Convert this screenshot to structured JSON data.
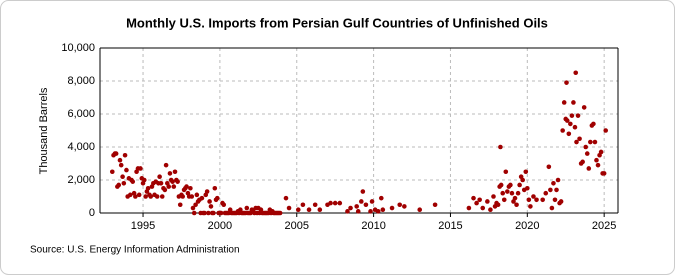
{
  "chart_data": {
    "type": "scatter",
    "title": "Monthly U.S. Imports from Persian Gulf Countries of Unfinished Oils",
    "y_label": "Thousand Barrels",
    "source": "Source: U.S. Energy Information Administration",
    "color": "#a00000",
    "grid": true,
    "xlim": [
      1992.2,
      2025.9
    ],
    "xticks": [
      1995,
      2000,
      2005,
      2010,
      2015,
      2020,
      2025
    ],
    "ylim": [
      0,
      10000
    ],
    "yticks": [
      0,
      {
        "value": 2000,
        "label": "2,000"
      },
      {
        "value": 4000,
        "label": "4,000"
      },
      {
        "value": 6000,
        "label": "6,000"
      },
      {
        "value": 8000,
        "label": "8,000"
      },
      {
        "value": 10000,
        "label": "10,000"
      }
    ],
    "x": [
      1993.0,
      1993.08,
      1993.17,
      1993.25,
      1993.33,
      1993.42,
      1993.5,
      1993.58,
      1993.67,
      1993.75,
      1993.83,
      1993.92,
      1994.0,
      1994.08,
      1994.17,
      1994.25,
      1994.33,
      1994.42,
      1994.5,
      1994.58,
      1994.67,
      1994.75,
      1994.83,
      1994.92,
      1995.0,
      1995.08,
      1995.17,
      1995.25,
      1995.33,
      1995.42,
      1995.5,
      1995.58,
      1995.67,
      1995.75,
      1995.83,
      1995.92,
      1996.0,
      1996.08,
      1996.17,
      1996.25,
      1996.33,
      1996.42,
      1996.5,
      1996.58,
      1996.67,
      1996.75,
      1996.83,
      1996.92,
      1997.0,
      1997.08,
      1997.17,
      1997.25,
      1997.33,
      1997.42,
      1997.5,
      1997.58,
      1997.67,
      1997.75,
      1997.83,
      1997.92,
      1998.0,
      1998.08,
      1998.17,
      1998.25,
      1998.33,
      1998.42,
      1998.5,
      1998.58,
      1998.67,
      1998.75,
      1998.83,
      1998.92,
      1999.0,
      1999.08,
      1999.17,
      1999.25,
      1999.33,
      1999.42,
      1999.5,
      1999.58,
      1999.67,
      1999.75,
      1999.83,
      1999.92,
      2000.0,
      2000.08,
      2000.17,
      2000.25,
      2000.33,
      2000.42,
      2000.5,
      2000.58,
      2000.67,
      2000.75,
      2000.83,
      2000.92,
      2001.0,
      2001.08,
      2001.17,
      2001.25,
      2001.33,
      2001.42,
      2001.5,
      2001.58,
      2001.67,
      2001.75,
      2001.83,
      2001.92,
      2002.0,
      2002.08,
      2002.17,
      2002.25,
      2002.33,
      2002.42,
      2002.5,
      2002.58,
      2002.67,
      2002.75,
      2002.83,
      2002.92,
      2003.0,
      2003.08,
      2003.17,
      2003.25,
      2003.33,
      2003.42,
      2003.5,
      2003.58,
      2003.67,
      2003.75,
      2003.83,
      2003.92,
      2004.3,
      2004.5,
      2005.1,
      2005.4,
      2005.8,
      2006.2,
      2006.5,
      2007.0,
      2007.2,
      2007.5,
      2007.8,
      2008.3,
      2008.5,
      2008.9,
      2009.0,
      2009.2,
      2009.3,
      2009.5,
      2009.8,
      2009.9,
      2010.1,
      2010.3,
      2010.5,
      2010.6,
      2011.2,
      2011.7,
      2012.0,
      2013.0,
      2014.0,
      2016.2,
      2016.5,
      2016.7,
      2016.9,
      2017.1,
      2017.4,
      2017.6,
      2017.8,
      2017.9,
      2018.0,
      2018.1,
      2018.2,
      2018.25,
      2018.3,
      2018.4,
      2018.5,
      2018.6,
      2018.7,
      2018.8,
      2018.9,
      2019.0,
      2019.1,
      2019.2,
      2019.3,
      2019.4,
      2019.5,
      2019.6,
      2019.7,
      2019.8,
      2019.9,
      2020.0,
      2020.1,
      2020.2,
      2020.4,
      2020.6,
      2021.0,
      2021.2,
      2021.4,
      2021.5,
      2021.6,
      2021.7,
      2021.8,
      2021.9,
      2022.0,
      2022.1,
      2022.2,
      2022.3,
      2022.4,
      2022.5,
      2022.55,
      2022.6,
      2022.7,
      2022.8,
      2022.9,
      2023.0,
      2023.1,
      2023.15,
      2023.2,
      2023.3,
      2023.4,
      2023.5,
      2023.6,
      2023.7,
      2023.8,
      2023.9,
      2024.0,
      2024.1,
      2024.2,
      2024.3,
      2024.4,
      2024.5,
      2024.6,
      2024.7,
      2024.8,
      2024.9,
      2025.0,
      2025.1
    ],
    "values": [
      2500,
      3500,
      3600,
      3600,
      1600,
      1700,
      3200,
      2900,
      2200,
      1800,
      3500,
      2600,
      1000,
      2100,
      1100,
      2000,
      1900,
      1200,
      1000,
      2500,
      2700,
      1100,
      2700,
      2100,
      1800,
      2000,
      1000,
      1300,
      1500,
      1100,
      1000,
      1600,
      1800,
      1100,
      1900,
      1000,
      1800,
      2200,
      1800,
      1000,
      1500,
      1400,
      2900,
      1800,
      1600,
      2400,
      2000,
      1900,
      1600,
      2500,
      2000,
      1900,
      1000,
      500,
      1100,
      1000,
      1400,
      1500,
      1600,
      1200,
      1000,
      1500,
      1000,
      300,
      0,
      500,
      1100,
      700,
      800,
      0,
      900,
      0,
      0,
      1100,
      1300,
      0,
      700,
      400,
      0,
      0,
      1500,
      800,
      900,
      0,
      0,
      0,
      600,
      500,
      0,
      0,
      0,
      0,
      200,
      0,
      0,
      0,
      0,
      0,
      100,
      0,
      200,
      0,
      0,
      0,
      0,
      300,
      0,
      0,
      0,
      200,
      100,
      0,
      300,
      0,
      300,
      0,
      200,
      0,
      0,
      0,
      0,
      0,
      0,
      200,
      0,
      100,
      0,
      0,
      0,
      0,
      0,
      0,
      900,
      300,
      200,
      500,
      200,
      500,
      200,
      500,
      600,
      600,
      600,
      100,
      300,
      400,
      100,
      700,
      1300,
      500,
      100,
      700,
      200,
      100,
      900,
      200,
      300,
      500,
      400,
      200,
      500,
      300,
      900,
      600,
      800,
      300,
      700,
      200,
      1000,
      400,
      600,
      500,
      1600,
      4000,
      1700,
      1200,
      800,
      2500,
      1300,
      1600,
      1700,
      1200,
      700,
      900,
      500,
      1200,
      1700,
      2200,
      2000,
      1400,
      2500,
      1500,
      800,
      400,
      1000,
      800,
      800,
      1200,
      2800,
      1400,
      300,
      1800,
      800,
      1400,
      2000,
      600,
      700,
      5000,
      6700,
      5700,
      7900,
      5600,
      4800,
      5400,
      5900,
      6700,
      5200,
      8500,
      4300,
      5900,
      4500,
      3000,
      3100,
      6400,
      4000,
      3600,
      2700,
      4300,
      5300,
      5400,
      4300,
      3200,
      2900,
      3500,
      3700,
      2400,
      2400,
      5000
    ]
  }
}
